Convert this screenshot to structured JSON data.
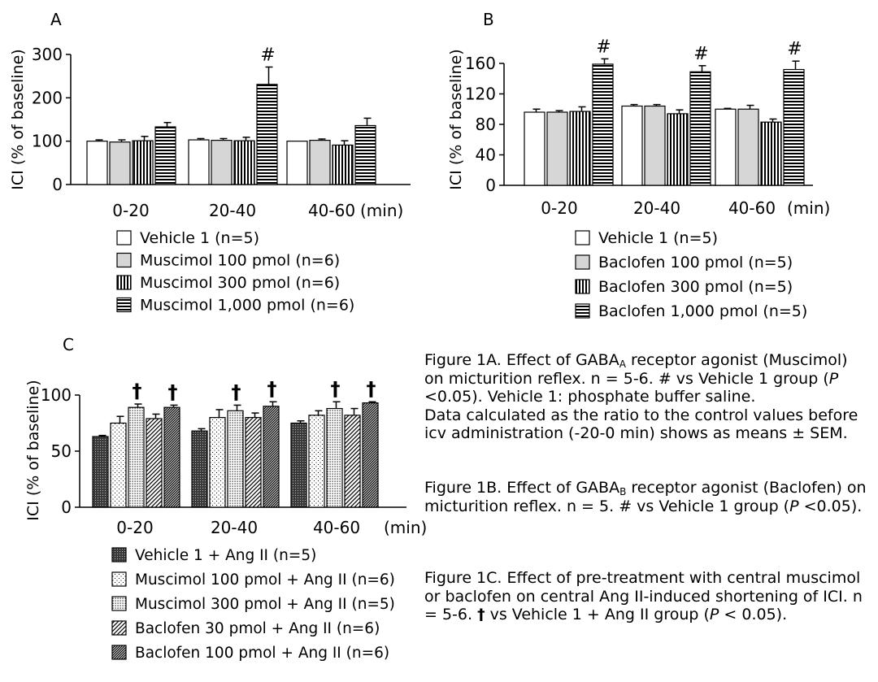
{
  "chart_data": [
    {
      "panel": "A",
      "type": "bar",
      "ylabel": "ICI (% of baseline)",
      "ylim": [
        0,
        300
      ],
      "yticks": [
        0,
        100,
        200,
        300
      ],
      "categories": [
        "0-20",
        "20-40",
        "40-60"
      ],
      "unit_label": "(min)",
      "series": [
        {
          "name": "Vehicle 1 (n=5)",
          "pattern": "white",
          "values": [
            100,
            103,
            100
          ],
          "err": [
            3,
            3,
            0
          ]
        },
        {
          "name": "Muscimol 100 pmol (n=6)",
          "pattern": "gray",
          "values": [
            98,
            102,
            102
          ],
          "err": [
            5,
            4,
            3
          ]
        },
        {
          "name": "Muscimol 300 pmol (n=6)",
          "pattern": "vlines",
          "values": [
            101,
            101,
            91
          ],
          "err": [
            10,
            8,
            10
          ]
        },
        {
          "name": "Muscimol 1,000 pmol (n=6)",
          "pattern": "hlines",
          "values": [
            133,
            231,
            136
          ],
          "err": [
            10,
            40,
            17
          ]
        }
      ],
      "annotations": [
        {
          "category": 1,
          "series": 3,
          "text": "#"
        }
      ]
    },
    {
      "panel": "B",
      "type": "bar",
      "ylabel": "ICI (% of baseline)",
      "ylim": [
        0,
        160
      ],
      "yticks": [
        0,
        40,
        80,
        120,
        160
      ],
      "categories": [
        "0-20",
        "20-40",
        "40-60"
      ],
      "unit_label": "(min)",
      "series": [
        {
          "name": "Vehicle 1 (n=5)",
          "pattern": "white",
          "values": [
            96,
            104,
            100
          ],
          "err": [
            4,
            2,
            1
          ]
        },
        {
          "name": "Baclofen 100 pmol (n=5)",
          "pattern": "gray",
          "values": [
            96,
            104,
            100
          ],
          "err": [
            2,
            2,
            5
          ]
        },
        {
          "name": "Baclofen 300 pmol (n=5)",
          "pattern": "vlines",
          "values": [
            97,
            94,
            83
          ],
          "err": [
            6,
            5,
            4
          ]
        },
        {
          "name": "Baclofen 1,000 pmol (n=5)",
          "pattern": "hlines",
          "values": [
            159,
            149,
            152
          ],
          "err": [
            7,
            8,
            11
          ]
        }
      ],
      "annotations": [
        {
          "category": 0,
          "series": 3,
          "text": "#"
        },
        {
          "category": 1,
          "series": 3,
          "text": "#"
        },
        {
          "category": 2,
          "series": 3,
          "text": "#"
        }
      ]
    },
    {
      "panel": "C",
      "type": "bar",
      "ylabel": "ICI (% of baseline)",
      "ylim": [
        0,
        100
      ],
      "yticks": [
        0,
        50,
        100
      ],
      "categories": [
        "0-20",
        "20-40",
        "40-60"
      ],
      "unit_label": "(min)",
      "series": [
        {
          "name": "Vehicle 1 + Ang II (n=5)",
          "pattern": "cross",
          "values": [
            63,
            68,
            75
          ],
          "err": [
            1,
            2,
            2
          ]
        },
        {
          "name": "Muscimol 100 pmol + Ang II (n=6)",
          "pattern": "dots-sparse",
          "values": [
            75,
            80,
            82
          ],
          "err": [
            6,
            7,
            4
          ]
        },
        {
          "name": "Muscimol 300 pmol + Ang II (n=5)",
          "pattern": "dots-dense",
          "values": [
            89,
            86,
            88
          ],
          "err": [
            3,
            5,
            6
          ]
        },
        {
          "name": "Baclofen 30 pmol + Ang II (n=6)",
          "pattern": "diag-sparse",
          "values": [
            79,
            80,
            82
          ],
          "err": [
            4,
            4,
            6
          ]
        },
        {
          "name": "Baclofen 100 pmol + Ang II (n=6)",
          "pattern": "diag-dense",
          "values": [
            89,
            90,
            93
          ],
          "err": [
            2,
            4,
            1
          ]
        }
      ],
      "annotations": [
        {
          "category": 0,
          "series": 2,
          "text": "†"
        },
        {
          "category": 0,
          "series": 4,
          "text": "†"
        },
        {
          "category": 1,
          "series": 2,
          "text": "†"
        },
        {
          "category": 1,
          "series": 4,
          "text": "†"
        },
        {
          "category": 2,
          "series": 2,
          "text": "†"
        },
        {
          "category": 2,
          "series": 4,
          "text": "†"
        }
      ]
    }
  ],
  "captions": {
    "a": {
      "pre": "Figure 1A. Effect of GABA",
      "sub": "A",
      "post": " receptor agonist (Muscimol) on micturition reflex. n = 5-6. # vs Vehicle 1 group (",
      "p": "P",
      "tail": " <0.05).  Vehicle 1: phosphate buffer saline.",
      "line2": "Data calculated as the ratio to the control values before icv administration (-20-0 min) shows as means ± SEM."
    },
    "b": {
      "pre": "Figure 1B. Effect of GABA",
      "sub": "B",
      "post": " receptor agonist (Baclofen) on micturition reflex. n = 5. # vs Vehicle 1 group (",
      "p": "P",
      "tail": " <0.05)."
    },
    "c": {
      "pre": "Figure 1C. Effect of pre-treatment with central muscimol or baclofen on central Ang II-induced shortening of ICI. n = 5-6.  ",
      "dagger": "†",
      "post": " vs Vehicle 1 + Ang II group (",
      "p": "P",
      "tail": " < 0.05)."
    }
  }
}
